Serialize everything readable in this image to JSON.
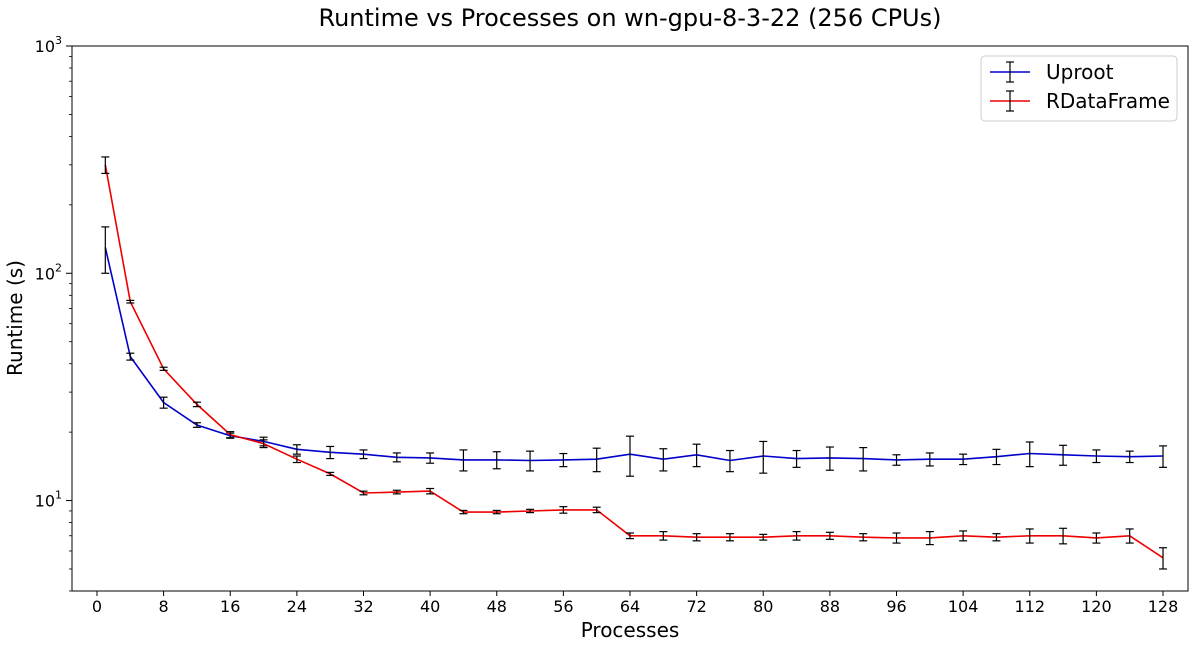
{
  "chart_data": {
    "type": "line",
    "title": "Runtime vs Processes on wn-gpu-8-3-22 (256 CPUs)",
    "xlabel": "Processes",
    "ylabel": "Runtime (s)",
    "yscale": "log",
    "xlim": [
      -3,
      131
    ],
    "ylim": [
      4,
      1000
    ],
    "xticks": [
      0,
      8,
      16,
      24,
      32,
      40,
      48,
      56,
      64,
      72,
      80,
      88,
      96,
      104,
      112,
      120,
      128
    ],
    "yticks": [
      {
        "value": 10,
        "base": "10",
        "exp": "1"
      },
      {
        "value": 100,
        "base": "10",
        "exp": "2"
      },
      {
        "value": 1000,
        "base": "10",
        "exp": "3"
      }
    ],
    "legend_position": "top-right",
    "series": [
      {
        "name": "Uproot",
        "color": "#0000cc",
        "x": [
          1,
          4,
          8,
          12,
          16,
          20,
          24,
          28,
          32,
          36,
          40,
          44,
          48,
          52,
          56,
          60,
          64,
          68,
          72,
          76,
          80,
          84,
          88,
          92,
          96,
          100,
          104,
          108,
          112,
          116,
          120,
          124,
          128
        ],
        "y": [
          130,
          43,
          27,
          21.5,
          19.3,
          18.2,
          16.8,
          16.3,
          16.0,
          15.5,
          15.4,
          15.1,
          15.1,
          15.0,
          15.1,
          15.2,
          16.0,
          15.2,
          15.9,
          15.0,
          15.7,
          15.3,
          15.4,
          15.3,
          15.1,
          15.2,
          15.2,
          15.6,
          16.1,
          15.9,
          15.7,
          15.6,
          15.7
        ],
        "err": [
          30,
          1.5,
          1.5,
          0.5,
          0.5,
          0.8,
          0.8,
          1.0,
          0.7,
          0.7,
          0.8,
          1.6,
          1.3,
          1.5,
          1.0,
          1.8,
          3.2,
          1.7,
          1.8,
          1.6,
          2.5,
          1.3,
          1.8,
          1.8,
          0.8,
          1.0,
          0.8,
          1.2,
          2.0,
          1.6,
          1.0,
          0.9,
          1.7
        ]
      },
      {
        "name": "RDataFrame",
        "color": "#ee0000",
        "x": [
          1,
          4,
          8,
          12,
          16,
          20,
          24,
          28,
          32,
          36,
          40,
          44,
          48,
          52,
          56,
          60,
          64,
          68,
          72,
          76,
          80,
          84,
          88,
          92,
          96,
          100,
          104,
          108,
          112,
          116,
          120,
          124,
          128
        ],
        "y": [
          300,
          75,
          38,
          26.5,
          19.5,
          17.8,
          15.2,
          13.1,
          10.8,
          10.9,
          11.0,
          8.9,
          8.9,
          9.0,
          9.1,
          9.1,
          7.0,
          7.0,
          6.9,
          6.9,
          6.9,
          7.0,
          7.0,
          6.9,
          6.85,
          6.85,
          7.0,
          6.9,
          7.0,
          7.0,
          6.85,
          7.0,
          5.6
        ],
        "err": [
          25,
          1.0,
          0.6,
          0.6,
          0.6,
          0.7,
          0.5,
          0.2,
          0.2,
          0.2,
          0.3,
          0.15,
          0.15,
          0.15,
          0.3,
          0.25,
          0.2,
          0.3,
          0.25,
          0.25,
          0.2,
          0.3,
          0.25,
          0.25,
          0.35,
          0.45,
          0.35,
          0.25,
          0.5,
          0.55,
          0.35,
          0.5,
          0.6
        ]
      }
    ]
  }
}
